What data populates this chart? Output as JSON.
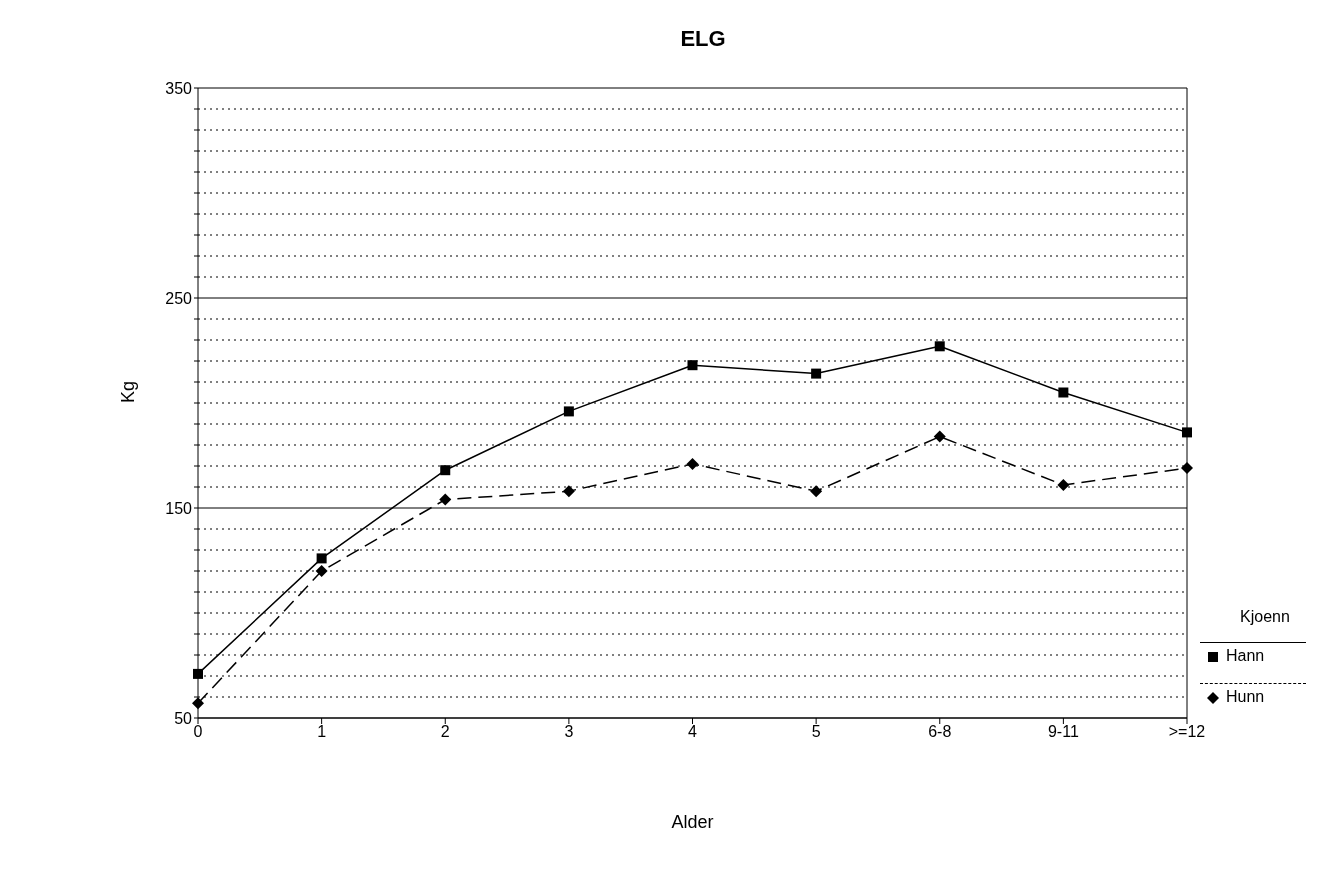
{
  "chart_data": {
    "type": "line",
    "title": "ELG",
    "xlabel": "Alder",
    "ylabel": "Kg",
    "legend_title": "Kjoenn",
    "categories": [
      "0",
      "1",
      "2",
      "3",
      "4",
      "5",
      "6-8",
      "9-11",
      ">=12"
    ],
    "series": [
      {
        "name": "Hann",
        "color": "#000000",
        "marker": "square",
        "line_style": "solid",
        "values": [
          71,
          126,
          168,
          196,
          218,
          214,
          227,
          205,
          186
        ]
      },
      {
        "name": "Hunn",
        "color": "#000000",
        "marker": "diamond",
        "line_style": "dashed",
        "values": [
          57,
          120,
          154,
          158,
          171,
          158,
          184,
          161,
          169
        ]
      }
    ],
    "ylim": [
      50,
      350
    ],
    "yticks": [
      50,
      {
        "value": 60,
        "label": null
      },
      {
        "value": 70,
        "label": null
      },
      {
        "value": 80,
        "label": null
      },
      {
        "value": 90,
        "label": null
      },
      {
        "value": 100,
        "label": null
      },
      {
        "value": 110,
        "label": null
      },
      {
        "value": 120,
        "label": null
      },
      {
        "value": 130,
        "label": null
      },
      {
        "value": 140,
        "label": null
      },
      150,
      {
        "value": 160,
        "label": null
      },
      {
        "value": 170,
        "label": null
      },
      {
        "value": 180,
        "label": null
      },
      {
        "value": 190,
        "label": null
      },
      {
        "value": 200,
        "label": null
      },
      {
        "value": 210,
        "label": null
      },
      {
        "value": 220,
        "label": null
      },
      {
        "value": 230,
        "label": null
      },
      {
        "value": 240,
        "label": null
      },
      250,
      {
        "value": 260,
        "label": null
      },
      {
        "value": 270,
        "label": null
      },
      {
        "value": 280,
        "label": null
      },
      {
        "value": 290,
        "label": null
      },
      {
        "value": 300,
        "label": null
      },
      {
        "value": 310,
        "label": null
      },
      {
        "value": 320,
        "label": null
      },
      {
        "value": 330,
        "label": null
      },
      {
        "value": 340,
        "label": null
      },
      350
    ],
    "grid": true,
    "legend": "right"
  }
}
